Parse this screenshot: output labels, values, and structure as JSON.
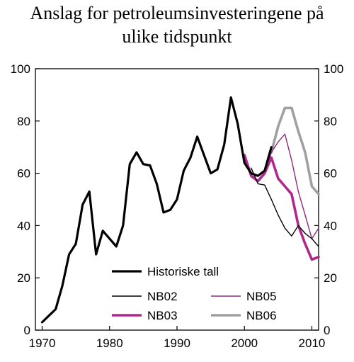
{
  "chart_data": {
    "type": "line",
    "title_lines": [
      "Anslag for petroleumsinvesteringene på",
      "ulike tidspunkt"
    ],
    "xlabel": "",
    "ylabel": "",
    "xlim": [
      1969,
      2011
    ],
    "ylim": [
      0,
      100
    ],
    "x_ticks": [
      1970,
      1980,
      1990,
      2000,
      2010
    ],
    "y_ticks_left": [
      0,
      20,
      40,
      60,
      80,
      100
    ],
    "y_ticks_right": [
      0,
      20,
      40,
      60,
      80,
      100
    ],
    "grid": false,
    "legend": {
      "placement": "bottom-center",
      "columns": 2
    },
    "series": [
      {
        "name": "Historiske tall",
        "color": "#000000",
        "points": [
          [
            1970,
            3
          ],
          [
            1971,
            5.5
          ],
          [
            1972,
            8
          ],
          [
            1973,
            17
          ],
          [
            1974,
            29
          ],
          [
            1975,
            33
          ],
          [
            1976,
            48
          ],
          [
            1977,
            53
          ],
          [
            1978,
            29
          ],
          [
            1979,
            38
          ],
          [
            1980,
            35
          ],
          [
            1981,
            32
          ],
          [
            1982,
            40
          ],
          [
            1983,
            63.5
          ],
          [
            1984,
            68
          ],
          [
            1985,
            63.5
          ],
          [
            1986,
            63
          ],
          [
            1987,
            56
          ],
          [
            1988,
            45
          ],
          [
            1989,
            46
          ],
          [
            1990,
            50
          ],
          [
            1991,
            61
          ],
          [
            1992,
            66
          ],
          [
            1993,
            74
          ],
          [
            1994,
            67
          ],
          [
            1995,
            60
          ],
          [
            1996,
            61.5
          ],
          [
            1997,
            71
          ],
          [
            1998,
            89
          ],
          [
            1999,
            79
          ],
          [
            2000,
            64
          ],
          [
            2001,
            60
          ],
          [
            2002,
            59
          ],
          [
            2003,
            61
          ],
          [
            2004,
            70
          ]
        ]
      },
      {
        "name": "NB02",
        "color": "#000000",
        "points": [
          [
            2001,
            62
          ],
          [
            2002,
            56
          ],
          [
            2003,
            55.5
          ],
          [
            2004,
            50
          ],
          [
            2005,
            44
          ],
          [
            2006,
            39
          ],
          [
            2007,
            36
          ],
          [
            2008,
            40
          ],
          [
            2009,
            37
          ],
          [
            2010,
            35
          ],
          [
            2011,
            32
          ]
        ]
      },
      {
        "name": "NB03",
        "color": "#b0288c",
        "points": [
          [
            2000,
            67
          ],
          [
            2001,
            59
          ],
          [
            2002,
            57
          ],
          [
            2003,
            60
          ],
          [
            2004,
            66
          ],
          [
            2005,
            58
          ],
          [
            2006,
            55
          ],
          [
            2007,
            52
          ],
          [
            2008,
            40
          ],
          [
            2009,
            33
          ],
          [
            2010,
            27
          ],
          [
            2011,
            28
          ]
        ]
      },
      {
        "name": "NB05",
        "color": "#8c2a78",
        "points": [
          [
            2003,
            60
          ],
          [
            2004,
            68
          ],
          [
            2005,
            72
          ],
          [
            2006,
            75
          ],
          [
            2007,
            65
          ],
          [
            2008,
            53
          ],
          [
            2009,
            44
          ],
          [
            2010,
            35
          ],
          [
            2011,
            39
          ]
        ]
      },
      {
        "name": "NB06",
        "color": "#a0a0a0",
        "points": [
          [
            2004,
            68
          ],
          [
            2005,
            78
          ],
          [
            2006,
            85
          ],
          [
            2007,
            85
          ],
          [
            2008,
            76
          ],
          [
            2009,
            68
          ],
          [
            2010,
            55
          ],
          [
            2011,
            52
          ]
        ]
      }
    ]
  }
}
